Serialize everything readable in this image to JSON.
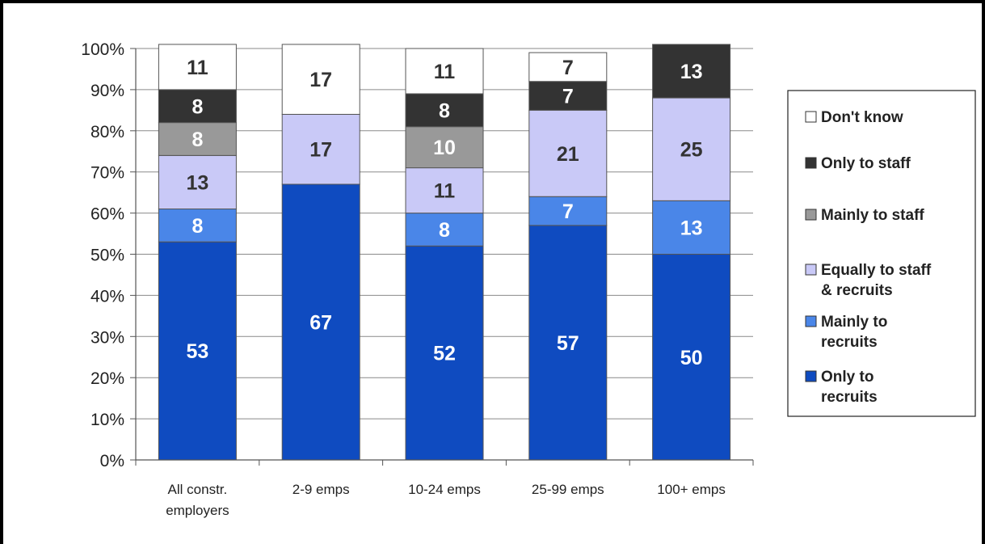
{
  "chart_data": {
    "type": "bar",
    "stacked": true,
    "percent_stacked": true,
    "categories": [
      "All constr. employers",
      "2-9 emps",
      "10-24 emps",
      "25-99 emps",
      "100+ emps"
    ],
    "category_lines": [
      [
        "All constr.",
        "employers"
      ],
      [
        "2-9 emps"
      ],
      [
        "10-24 emps"
      ],
      [
        "25-99 emps"
      ],
      [
        "100+ emps"
      ]
    ],
    "series": [
      {
        "name": "Only to recruits",
        "legend_lines": [
          "Only to",
          "recruits"
        ],
        "color": "#0f4bc0",
        "label_color": "#ffffff",
        "values": [
          53,
          67,
          52,
          57,
          50
        ]
      },
      {
        "name": "Mainly to recruits",
        "legend_lines": [
          "Mainly to",
          "recruits"
        ],
        "color": "#4a86e8",
        "label_color": "#ffffff",
        "values": [
          8,
          0,
          8,
          7,
          13
        ]
      },
      {
        "name": "Equally to staff & recruits",
        "legend_lines": [
          "Equally to staff",
          "& recruits"
        ],
        "color": "#c9c9f7",
        "label_color": "#333333",
        "values": [
          13,
          17,
          11,
          21,
          25
        ]
      },
      {
        "name": "Mainly to staff",
        "legend_lines": [
          "Mainly to staff"
        ],
        "color": "#999999",
        "label_color": "#ffffff",
        "values": [
          8,
          0,
          10,
          0,
          0
        ]
      },
      {
        "name": "Only to staff",
        "legend_lines": [
          "Only to staff"
        ],
        "color": "#333333",
        "label_color": "#ffffff",
        "values": [
          8,
          0,
          8,
          7,
          13
        ]
      },
      {
        "name": "Don't know",
        "legend_lines": [
          "Don't know"
        ],
        "color": "#ffffff",
        "label_color": "#333333",
        "values": [
          11,
          17,
          11,
          7,
          0
        ]
      }
    ],
    "y_ticks": [
      "0%",
      "10%",
      "20%",
      "30%",
      "40%",
      "50%",
      "60%",
      "70%",
      "80%",
      "90%",
      "100%"
    ],
    "ylim": [
      0,
      100
    ],
    "grid": true,
    "legend_position": "right"
  }
}
